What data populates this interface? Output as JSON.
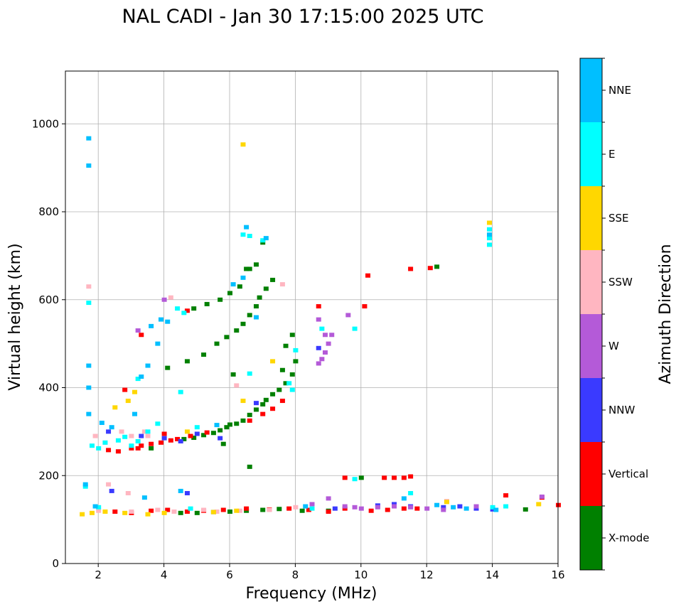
{
  "chart_data": {
    "type": "scatter",
    "title": "NAL CADI - Jan 30 17:15:00 2025 UTC",
    "xlabel": "Frequency (MHz)",
    "ylabel": "Virtual height (km)",
    "xlim": [
      1,
      16
    ],
    "ylim": [
      0,
      1120
    ],
    "xticks": [
      2,
      4,
      6,
      8,
      10,
      12,
      14,
      16
    ],
    "yticks": [
      0,
      200,
      400,
      600,
      800,
      1000
    ],
    "grid": true,
    "colorbar": {
      "label": "Azimuth Direction",
      "categories": [
        "X-mode",
        "Vertical",
        "NNW",
        "W",
        "SSW",
        "SSE",
        "E",
        "NNE"
      ],
      "colors": [
        "#008000",
        "#ff0000",
        "#3a3aff",
        "#b45ad8",
        "#ffb6c1",
        "#ffd700",
        "#00ffff",
        "#00bfff"
      ]
    },
    "series": [
      {
        "name": "X-mode",
        "points": [
          [
            4.6,
            283
          ],
          [
            4.9,
            286
          ],
          [
            5.2,
            292
          ],
          [
            5.5,
            297
          ],
          [
            5.7,
            303
          ],
          [
            5.9,
            310
          ],
          [
            6.0,
            316
          ],
          [
            6.2,
            318
          ],
          [
            6.4,
            325
          ],
          [
            6.6,
            338
          ],
          [
            6.8,
            350
          ],
          [
            7.0,
            362
          ],
          [
            7.1,
            372
          ],
          [
            7.3,
            385
          ],
          [
            7.5,
            395
          ],
          [
            7.7,
            410
          ],
          [
            7.9,
            430
          ],
          [
            8.0,
            460
          ],
          [
            4.7,
            460
          ],
          [
            5.2,
            475
          ],
          [
            5.6,
            500
          ],
          [
            5.9,
            515
          ],
          [
            6.2,
            530
          ],
          [
            6.4,
            545
          ],
          [
            6.6,
            565
          ],
          [
            6.8,
            585
          ],
          [
            6.9,
            605
          ],
          [
            7.1,
            625
          ],
          [
            7.3,
            645
          ],
          [
            7.7,
            495
          ],
          [
            7.9,
            520
          ],
          [
            4.9,
            580
          ],
          [
            5.3,
            590
          ],
          [
            5.7,
            600
          ],
          [
            6.0,
            615
          ],
          [
            6.3,
            630
          ],
          [
            6.5,
            670
          ],
          [
            6.8,
            680
          ],
          [
            7.0,
            730
          ],
          [
            6.6,
            670
          ],
          [
            6.6,
            220
          ],
          [
            6.1,
            430
          ],
          [
            7.6,
            440
          ],
          [
            4.5,
            115
          ],
          [
            5.0,
            115
          ],
          [
            5.5,
            117
          ],
          [
            6.0,
            118
          ],
          [
            6.5,
            120
          ],
          [
            7.0,
            122
          ],
          [
            7.5,
            124
          ],
          [
            8.2,
            120
          ],
          [
            9.0,
            120
          ],
          [
            10.0,
            195
          ],
          [
            12.3,
            675
          ],
          [
            15.0,
            123
          ],
          [
            5.8,
            272
          ],
          [
            4.1,
            445
          ],
          [
            3.6,
            262
          ]
        ]
      },
      {
        "name": "Vertical",
        "points": [
          [
            2.3,
            258
          ],
          [
            2.6,
            255
          ],
          [
            3.0,
            262
          ],
          [
            3.3,
            268
          ],
          [
            3.6,
            272
          ],
          [
            3.9,
            275
          ],
          [
            4.2,
            280
          ],
          [
            4.4,
            283
          ],
          [
            4.8,
            290
          ],
          [
            5.3,
            298
          ],
          [
            6.6,
            325
          ],
          [
            7.0,
            340
          ],
          [
            7.3,
            352
          ],
          [
            7.6,
            370
          ],
          [
            2.5,
            118
          ],
          [
            3.0,
            115
          ],
          [
            3.6,
            120
          ],
          [
            4.1,
            122
          ],
          [
            4.7,
            118
          ],
          [
            5.2,
            120
          ],
          [
            5.8,
            122
          ],
          [
            6.5,
            125
          ],
          [
            7.2,
            123
          ],
          [
            7.8,
            125
          ],
          [
            8.4,
            122
          ],
          [
            9.0,
            118
          ],
          [
            9.5,
            125
          ],
          [
            10.3,
            120
          ],
          [
            10.8,
            122
          ],
          [
            11.3,
            125
          ],
          [
            11.7,
            125
          ],
          [
            10.7,
            195
          ],
          [
            11.0,
            195
          ],
          [
            11.3,
            195
          ],
          [
            11.5,
            198
          ],
          [
            9.5,
            195
          ],
          [
            10.2,
            655
          ],
          [
            11.5,
            670
          ],
          [
            12.1,
            672
          ],
          [
            8.7,
            585
          ],
          [
            10.1,
            585
          ],
          [
            4.7,
            575
          ],
          [
            3.3,
            520
          ],
          [
            2.8,
            395
          ],
          [
            14.4,
            155
          ],
          [
            15.5,
            150
          ],
          [
            16.0,
            133
          ],
          [
            4.0,
            295
          ],
          [
            3.2,
            262
          ]
        ]
      },
      {
        "name": "NNW",
        "points": [
          [
            3.3,
            290
          ],
          [
            4.0,
            285
          ],
          [
            4.5,
            278
          ],
          [
            5.0,
            295
          ],
          [
            2.4,
            165
          ],
          [
            12.5,
            128
          ],
          [
            13.0,
            130
          ],
          [
            13.5,
            125
          ],
          [
            14.0,
            123
          ],
          [
            11.0,
            135
          ],
          [
            11.5,
            130
          ],
          [
            10.5,
            132
          ],
          [
            9.2,
            125
          ],
          [
            8.7,
            490
          ],
          [
            2.3,
            300
          ],
          [
            5.7,
            285
          ],
          [
            6.8,
            365
          ],
          [
            4.7,
            160
          ]
        ]
      },
      {
        "name": "W",
        "points": [
          [
            8.7,
            455
          ],
          [
            8.9,
            480
          ],
          [
            9.0,
            500
          ],
          [
            9.1,
            520
          ],
          [
            8.8,
            465
          ],
          [
            8.7,
            555
          ],
          [
            8.9,
            520
          ],
          [
            9.6,
            565
          ],
          [
            9.0,
            148
          ],
          [
            9.5,
            130
          ],
          [
            10.0,
            125
          ],
          [
            10.5,
            128
          ],
          [
            11.0,
            130
          ],
          [
            11.5,
            128
          ],
          [
            12.0,
            125
          ],
          [
            12.5,
            122
          ],
          [
            13.5,
            130
          ],
          [
            15.5,
            152
          ],
          [
            4.0,
            600
          ],
          [
            3.2,
            530
          ],
          [
            8.5,
            135
          ],
          [
            9.8,
            128
          ]
        ]
      },
      {
        "name": "SSW",
        "points": [
          [
            1.7,
            630
          ],
          [
            2.2,
            275
          ],
          [
            2.7,
            300
          ],
          [
            3.0,
            290
          ],
          [
            3.5,
            290
          ],
          [
            2.3,
            180
          ],
          [
            2.9,
            160
          ],
          [
            2.0,
            120
          ],
          [
            3.0,
            118
          ],
          [
            3.8,
            122
          ],
          [
            4.3,
            118
          ],
          [
            5.2,
            122
          ],
          [
            5.6,
            118
          ],
          [
            6.3,
            120
          ],
          [
            7.2,
            122
          ],
          [
            8.0,
            128
          ],
          [
            3.4,
            300
          ],
          [
            4.2,
            605
          ],
          [
            7.6,
            635
          ],
          [
            6.2,
            405
          ],
          [
            12.6,
            142
          ],
          [
            1.9,
            290
          ]
        ]
      },
      {
        "name": "SSE",
        "points": [
          [
            6.4,
            953
          ],
          [
            13.9,
            775
          ],
          [
            2.5,
            355
          ],
          [
            2.9,
            370
          ],
          [
            1.5,
            112
          ],
          [
            1.8,
            115
          ],
          [
            2.2,
            118
          ],
          [
            2.8,
            115
          ],
          [
            3.5,
            112
          ],
          [
            4.0,
            115
          ],
          [
            5.5,
            117
          ],
          [
            6.2,
            120
          ],
          [
            6.4,
            370
          ],
          [
            7.3,
            460
          ],
          [
            12.6,
            140
          ],
          [
            15.4,
            135
          ],
          [
            3.1,
            390
          ],
          [
            4.7,
            300
          ]
        ]
      },
      {
        "name": "E",
        "points": [
          [
            13.9,
            760
          ],
          [
            13.9,
            740
          ],
          [
            13.9,
            725
          ],
          [
            1.8,
            268
          ],
          [
            2.0,
            262
          ],
          [
            2.2,
            275
          ],
          [
            2.6,
            280
          ],
          [
            3.0,
            268
          ],
          [
            3.2,
            278
          ],
          [
            2.8,
            288
          ],
          [
            3.5,
            300
          ],
          [
            3.8,
            318
          ],
          [
            4.4,
            580
          ],
          [
            4.6,
            570
          ],
          [
            6.6,
            432
          ],
          [
            6.4,
            748
          ],
          [
            7.0,
            735
          ],
          [
            7.8,
            410
          ],
          [
            8.0,
            485
          ],
          [
            7.9,
            395
          ],
          [
            9.8,
            192
          ],
          [
            9.8,
            534
          ],
          [
            8.8,
            534
          ],
          [
            11.5,
            160
          ],
          [
            14.0,
            128
          ],
          [
            14.4,
            130
          ],
          [
            1.7,
            593
          ],
          [
            1.6,
            175
          ],
          [
            2.0,
            128
          ],
          [
            4.8,
            125
          ],
          [
            3.2,
            420
          ],
          [
            4.5,
            390
          ],
          [
            5.0,
            310
          ],
          [
            6.6,
            745
          ],
          [
            8.5,
            125
          ]
        ]
      },
      {
        "name": "NNE",
        "points": [
          [
            1.7,
            967
          ],
          [
            1.7,
            905
          ],
          [
            1.7,
            450
          ],
          [
            1.7,
            400
          ],
          [
            1.7,
            340
          ],
          [
            2.1,
            320
          ],
          [
            2.4,
            310
          ],
          [
            3.1,
            340
          ],
          [
            3.3,
            425
          ],
          [
            3.5,
            450
          ],
          [
            3.8,
            500
          ],
          [
            4.1,
            550
          ],
          [
            3.9,
            555
          ],
          [
            3.6,
            540
          ],
          [
            6.1,
            635
          ],
          [
            6.5,
            765
          ],
          [
            6.4,
            650
          ],
          [
            7.1,
            740
          ],
          [
            8.3,
            130
          ],
          [
            11.3,
            148
          ],
          [
            12.3,
            133
          ],
          [
            12.8,
            128
          ],
          [
            13.2,
            125
          ],
          [
            14.1,
            122
          ],
          [
            1.6,
            180
          ],
          [
            1.9,
            130
          ],
          [
            4.5,
            165
          ],
          [
            3.4,
            150
          ],
          [
            5.6,
            315
          ],
          [
            6.8,
            560
          ],
          [
            13.9,
            748
          ]
        ]
      }
    ]
  }
}
